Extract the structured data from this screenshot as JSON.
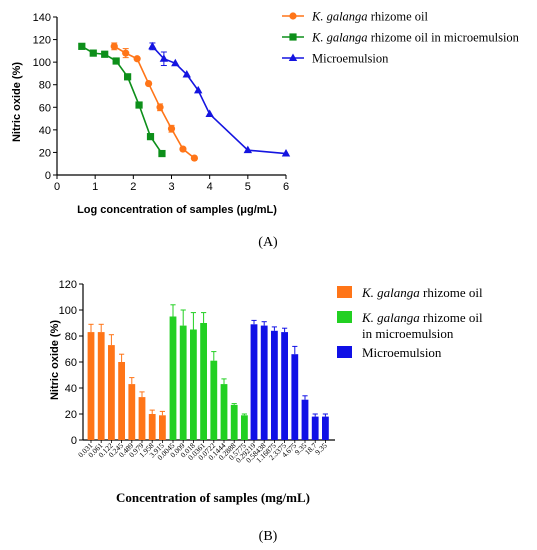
{
  "colors": {
    "orange": "#ff7518",
    "green": "#0d8f1a",
    "blue": "#1414e0",
    "green_bar": "#22d022",
    "blue_bar": "#1010e6"
  },
  "chart_data": [
    {
      "type": "line",
      "panel_label": "(A)",
      "xlabel": "Log concentration of samples (μg/mL)",
      "ylabel": "Nitric oxide (%)",
      "xlim": [
        0,
        6
      ],
      "ylim": [
        0,
        140
      ],
      "xticks": [
        0,
        1,
        2,
        3,
        4,
        5,
        6
      ],
      "yticks": [
        0,
        20,
        40,
        60,
        80,
        100,
        120,
        140
      ],
      "legend_position": "top-right",
      "series": [
        {
          "name": "K. galanga rhizome oil",
          "name_italic": "K. galanga",
          "name_rest": " rhizome oil",
          "color": "orange",
          "marker": "circle",
          "x": [
            1.5,
            1.8,
            2.1,
            2.4,
            2.7,
            3.0,
            3.3,
            3.6
          ],
          "y": [
            114,
            108,
            103,
            81,
            60,
            41,
            23,
            15
          ],
          "err": [
            3,
            4,
            0,
            0,
            3,
            3,
            0,
            0
          ]
        },
        {
          "name": "K. galanga rhizome oil in microemulsion",
          "name_italic": "K. galanga",
          "name_rest": " rhizome oil in microemulsion",
          "color": "green",
          "marker": "square",
          "x": [
            0.65,
            0.95,
            1.25,
            1.55,
            1.85,
            2.15,
            2.45,
            2.75
          ],
          "y": [
            114,
            108,
            107,
            101,
            87,
            62,
            34,
            19
          ],
          "err": [
            0,
            0,
            0,
            0,
            0,
            0,
            0,
            0
          ]
        },
        {
          "name": "Microemulsion",
          "name_italic": "",
          "name_rest": "Microemulsion",
          "color": "blue",
          "marker": "triangle",
          "x": [
            2.5,
            2.8,
            3.1,
            3.4,
            3.7,
            4.0,
            5.0,
            6.0
          ],
          "y": [
            114,
            103,
            99,
            89,
            75,
            54,
            22,
            19
          ],
          "err": [
            3,
            6,
            0,
            0,
            0,
            0,
            0,
            0
          ]
        }
      ]
    },
    {
      "type": "bar",
      "panel_label": "(B)",
      "xlabel": "Concentration of samples (mg/mL)",
      "ylabel": "Nitric oxide (%)",
      "ylim": [
        0,
        120
      ],
      "yticks": [
        0,
        20,
        40,
        60,
        80,
        100,
        120
      ],
      "legend_position": "right",
      "series": [
        {
          "name": "K. galanga rhizome oil",
          "name_italic": "K. galanga",
          "name_rest": " rhizome oil",
          "name_line2": "",
          "color": "orange",
          "categories": [
            "0.031",
            "0.061",
            "0.122",
            "0.245",
            "0.489",
            "0.979",
            "1.958",
            "3.915"
          ],
          "values": [
            83,
            83,
            73,
            60,
            43,
            33,
            20,
            19
          ],
          "err": [
            6,
            6,
            8,
            6,
            5,
            4,
            3,
            3
          ]
        },
        {
          "name": "K. galanga rhizome oil in microemulsion",
          "name_italic": "K. galanga",
          "name_rest": " rhizome oil",
          "name_line2": "in microemulsion",
          "color": "green_bar",
          "categories": [
            "0.0045",
            "0.009",
            "0.018",
            "0.0361",
            "0.0722",
            "0.1444",
            "0.2888",
            "0.5775"
          ],
          "values": [
            95,
            88,
            85,
            90,
            61,
            43,
            27,
            19
          ],
          "err": [
            9,
            12,
            13,
            8,
            7,
            4,
            1,
            1
          ]
        },
        {
          "name": "Microemulsion",
          "name_italic": "",
          "name_rest": "Microemulsion",
          "name_line2": "",
          "color": "blue_bar",
          "categories": [
            "0.29219",
            "0.58438",
            "1.16875",
            "2.3375",
            "4.675",
            "9.35",
            "18.7",
            "9.35"
          ],
          "values": [
            89,
            88,
            84,
            83,
            66,
            31,
            18,
            18
          ],
          "err": [
            3,
            3,
            3,
            3,
            6,
            3,
            2,
            2
          ]
        }
      ]
    }
  ]
}
